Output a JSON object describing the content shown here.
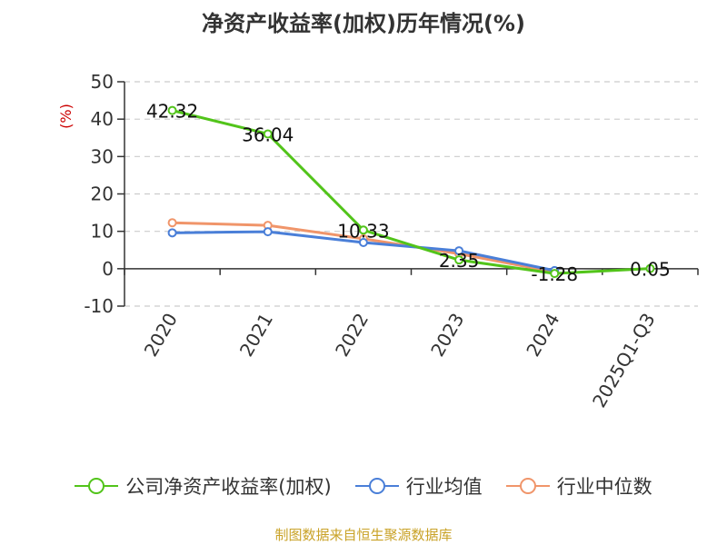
{
  "chart_data": {
    "type": "line",
    "title": "净资产收益率(加权)历年情况(%)",
    "ylabel": "(%)",
    "categories": [
      "2020",
      "2021",
      "2022",
      "2023",
      "2024",
      "2025Q1-Q3"
    ],
    "ylim": [
      -10,
      50
    ],
    "yticks": [
      -10,
      0,
      10,
      20,
      30,
      40,
      50
    ],
    "grid": true,
    "legend_position": "bottom",
    "series": [
      {
        "name": "公司净资产收益率(加权)",
        "color": "#52c41a",
        "values": [
          42.32,
          36.04,
          10.33,
          2.35,
          -1.28,
          0.05
        ],
        "labels": [
          "42.32",
          "36.04",
          "10.33",
          "2.35",
          "-1.28",
          "0.05"
        ]
      },
      {
        "name": "行业均值",
        "color": "#4a7fd8",
        "values": [
          9.6,
          9.9,
          7.0,
          4.8,
          -0.5,
          null
        ]
      },
      {
        "name": "行业中位数",
        "color": "#f0956a",
        "values": [
          12.3,
          11.6,
          8.0,
          4.0,
          -0.9,
          null
        ]
      }
    ]
  },
  "source": "制图数据来自恒生聚源数据库"
}
